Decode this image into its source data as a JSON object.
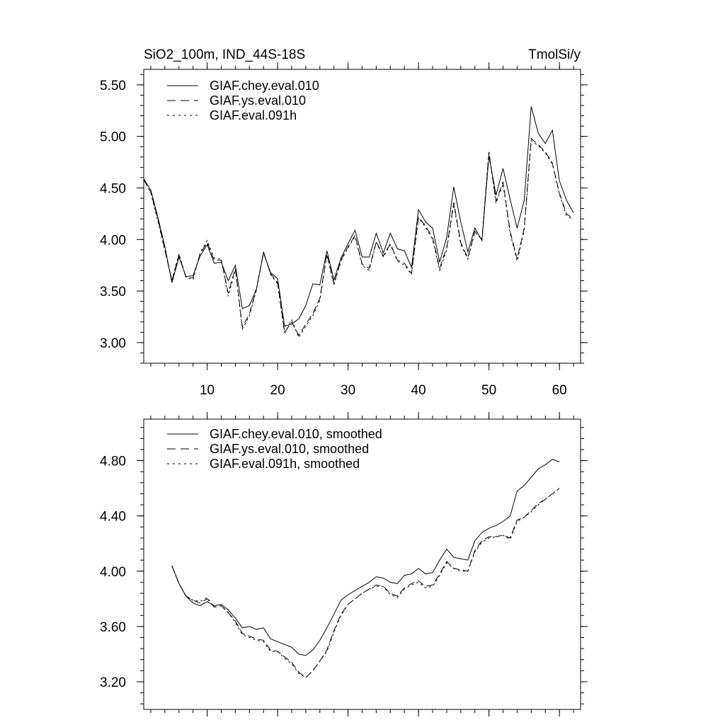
{
  "chart_data": [
    {
      "type": "line",
      "title_left": "SiO2_100m, IND_44S-18S",
      "title_right": "TmolSi/y",
      "xlim": [
        1,
        63
      ],
      "ylim": [
        2.8,
        5.65
      ],
      "x_ticks": [
        10,
        20,
        30,
        40,
        50,
        60
      ],
      "y_ticks": [
        3.0,
        3.5,
        4.0,
        4.5,
        5.0,
        5.5
      ],
      "y_tick_labels": [
        "3.00",
        "3.50",
        "4.00",
        "4.50",
        "5.00",
        "5.50"
      ],
      "x": [
        1,
        2,
        3,
        4,
        5,
        6,
        7,
        8,
        9,
        10,
        11,
        12,
        13,
        14,
        15,
        16,
        17,
        18,
        19,
        20,
        21,
        22,
        23,
        24,
        25,
        26,
        27,
        28,
        29,
        30,
        31,
        32,
        33,
        34,
        35,
        36,
        37,
        38,
        39,
        40,
        41,
        42,
        43,
        44,
        45,
        46,
        47,
        48,
        49,
        50,
        51,
        52,
        53,
        54,
        55,
        56,
        57,
        58,
        59,
        60,
        61,
        62
      ],
      "series": [
        {
          "name": "GIAF.chey.eval.010",
          "dash": "solid",
          "values": [
            4.59,
            4.48,
            4.22,
            3.93,
            3.58,
            3.83,
            3.64,
            3.65,
            3.84,
            3.95,
            3.77,
            3.78,
            3.6,
            3.75,
            3.33,
            3.36,
            3.52,
            3.87,
            3.68,
            3.62,
            3.16,
            3.18,
            3.23,
            3.36,
            3.57,
            3.56,
            3.89,
            3.61,
            3.82,
            3.96,
            4.09,
            3.83,
            3.83,
            4.06,
            3.87,
            4.06,
            3.91,
            3.89,
            3.73,
            4.29,
            4.17,
            4.11,
            3.78,
            4.02,
            4.51,
            4.17,
            3.88,
            4.11,
            3.99,
            4.81,
            4.43,
            4.69,
            4.39,
            4.11,
            4.38,
            5.29,
            5.03,
            4.93,
            5.06,
            4.57,
            4.38,
            4.26
          ]
        },
        {
          "name": "GIAF.ys.eval.010",
          "dash": "dash",
          "values": [
            4.58,
            4.46,
            4.2,
            3.9,
            3.6,
            3.85,
            3.63,
            3.63,
            3.86,
            3.97,
            3.8,
            3.8,
            3.48,
            3.72,
            3.15,
            3.28,
            3.52,
            3.88,
            3.67,
            3.58,
            3.1,
            3.2,
            3.07,
            3.18,
            3.28,
            3.43,
            3.86,
            3.57,
            3.8,
            3.93,
            4.04,
            3.76,
            3.72,
            3.98,
            3.84,
            3.96,
            3.8,
            3.77,
            3.67,
            4.22,
            4.13,
            4.02,
            3.72,
            3.92,
            4.36,
            3.97,
            3.82,
            4.08,
            4.0,
            4.84,
            4.37,
            4.56,
            4.08,
            3.81,
            4.11,
            4.98,
            4.92,
            4.85,
            4.74,
            4.45,
            4.25,
            4.2
          ]
        },
        {
          "name": "GIAF.eval.091h",
          "dash": "dot",
          "values": [
            4.58,
            4.45,
            4.18,
            3.89,
            3.61,
            3.86,
            3.63,
            3.61,
            3.87,
            3.99,
            3.82,
            3.81,
            3.45,
            3.71,
            3.13,
            3.26,
            3.51,
            3.88,
            3.66,
            3.57,
            3.08,
            3.22,
            3.05,
            3.16,
            3.26,
            3.41,
            3.85,
            3.56,
            3.79,
            3.92,
            4.03,
            3.75,
            3.7,
            3.97,
            3.83,
            3.95,
            3.79,
            3.75,
            3.66,
            4.21,
            4.12,
            4.0,
            3.7,
            3.9,
            4.34,
            3.95,
            3.81,
            4.07,
            4.0,
            4.86,
            4.35,
            4.54,
            4.06,
            3.79,
            4.09,
            4.96,
            4.91,
            4.84,
            4.73,
            4.44,
            4.23,
            4.19
          ]
        }
      ]
    },
    {
      "type": "line",
      "xlim": [
        1,
        63
      ],
      "ylim": [
        3.0,
        5.1
      ],
      "x_ticks": [
        10,
        20,
        30,
        40,
        50,
        60
      ],
      "y_ticks": [
        3.2,
        3.6,
        4.0,
        4.4,
        4.8
      ],
      "y_tick_labels": [
        "3.20",
        "3.60",
        "4.00",
        "4.40",
        "4.80"
      ],
      "x": [
        5,
        6,
        7,
        8,
        9,
        10,
        11,
        12,
        13,
        14,
        15,
        16,
        17,
        18,
        19,
        20,
        21,
        22,
        23,
        24,
        25,
        26,
        27,
        28,
        29,
        30,
        31,
        32,
        33,
        34,
        35,
        36,
        37,
        38,
        39,
        40,
        41,
        42,
        43,
        44,
        45,
        46,
        47,
        48,
        49,
        50,
        51,
        52,
        53,
        54,
        55,
        56,
        57,
        58,
        59,
        60
      ],
      "series": [
        {
          "name": "GIAF.chey.eval.010, smoothed",
          "dash": "solid",
          "values": [
            4.04,
            3.91,
            3.82,
            3.77,
            3.75,
            3.78,
            3.75,
            3.76,
            3.72,
            3.66,
            3.59,
            3.6,
            3.58,
            3.59,
            3.51,
            3.49,
            3.47,
            3.45,
            3.4,
            3.39,
            3.43,
            3.5,
            3.59,
            3.69,
            3.79,
            3.83,
            3.86,
            3.89,
            3.92,
            3.96,
            3.95,
            3.92,
            3.91,
            3.97,
            3.98,
            4.02,
            3.98,
            3.99,
            4.08,
            4.16,
            4.1,
            4.09,
            4.08,
            4.22,
            4.28,
            4.31,
            4.33,
            4.36,
            4.4,
            4.58,
            4.62,
            4.68,
            4.74,
            4.77,
            4.81,
            4.79
          ]
        },
        {
          "name": "GIAF.ys.eval.010, smoothed",
          "dash": "dash",
          "values": [
            4.04,
            3.91,
            3.82,
            3.79,
            3.77,
            3.8,
            3.74,
            3.75,
            3.7,
            3.64,
            3.55,
            3.53,
            3.51,
            3.5,
            3.43,
            3.42,
            3.38,
            3.34,
            3.27,
            3.23,
            3.28,
            3.35,
            3.43,
            3.57,
            3.69,
            3.76,
            3.8,
            3.84,
            3.87,
            3.9,
            3.89,
            3.84,
            3.82,
            3.88,
            3.91,
            3.93,
            3.89,
            3.9,
            3.98,
            4.07,
            4.02,
            4.01,
            4.0,
            4.15,
            4.22,
            4.25,
            4.25,
            4.26,
            4.24,
            4.37,
            4.39,
            4.44,
            4.49,
            4.52,
            4.56,
            4.6
          ]
        },
        {
          "name": "GIAF.eval.091h, smoothed",
          "dash": "dot",
          "values": [
            4.04,
            3.91,
            3.82,
            3.79,
            3.78,
            3.81,
            3.74,
            3.75,
            3.7,
            3.63,
            3.54,
            3.52,
            3.5,
            3.49,
            3.42,
            3.42,
            3.37,
            3.33,
            3.26,
            3.23,
            3.28,
            3.35,
            3.42,
            3.56,
            3.68,
            3.76,
            3.8,
            3.84,
            3.87,
            3.89,
            3.89,
            3.83,
            3.81,
            3.87,
            3.9,
            3.92,
            3.88,
            3.89,
            3.97,
            4.06,
            4.02,
            4.0,
            4.0,
            4.14,
            4.21,
            4.24,
            4.25,
            4.26,
            4.23,
            4.36,
            4.39,
            4.43,
            4.48,
            4.52,
            4.56,
            4.6
          ]
        }
      ]
    }
  ]
}
